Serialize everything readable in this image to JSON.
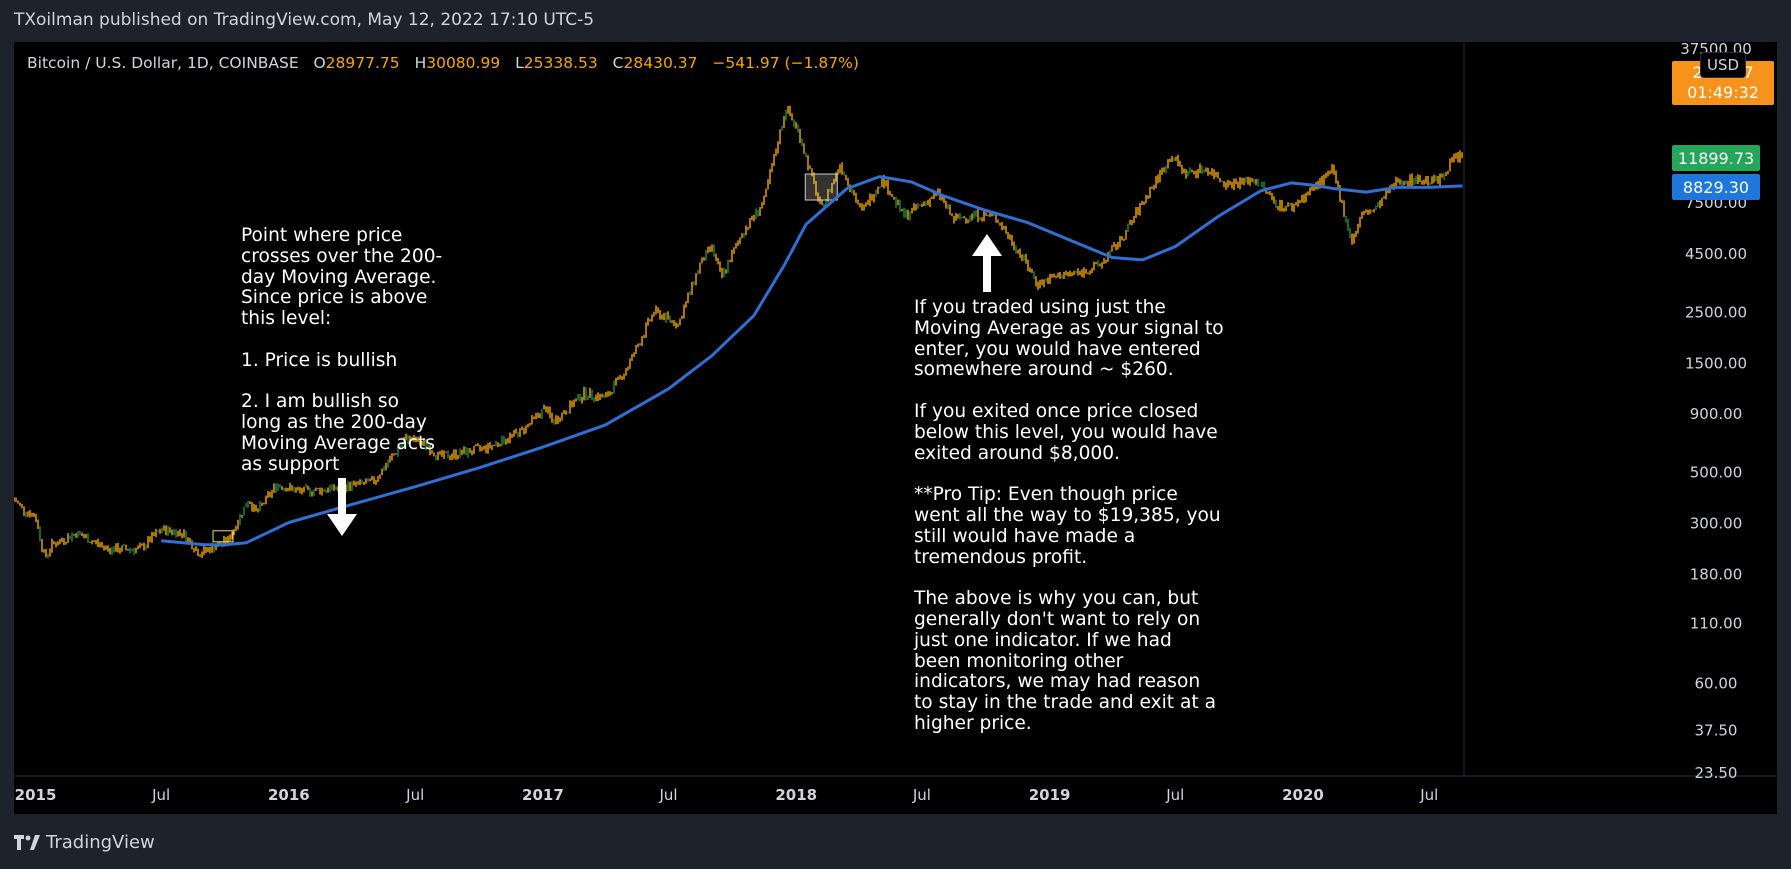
{
  "header": {
    "publisher": "TXoilman published on TradingView.com, May 12, 2022 17:10 UTC-5"
  },
  "legend": {
    "symbol": "Bitcoin / U.S. Dollar, 1D, COINBASE",
    "open_label": "O",
    "open": "28977.75",
    "high_label": "H",
    "high": "30080.99",
    "low_label": "L",
    "low": "25338.53",
    "close_label": "C",
    "close": "28430.37",
    "change": "−541.97 (−1.87%)"
  },
  "currency_badge": "USD",
  "price_tags": {
    "last_price_partial": "28    37",
    "countdown": "01:49:32",
    "current": "11899.73",
    "moving_average": "8829.30"
  },
  "annotations": {
    "left_note": "Point where price\ncrosses over the 200-\nday Moving Average.\nSince price is above\nthis level:\n\n1. Price is bullish\n\n2. I am bullish so\nlong as the 200-day\nMoving Average acts\nas support",
    "right_note": "If you traded using just the\nMoving Average as your signal to\nenter, you would have entered\nsomewhere around ~ $260.\n\nIf you exited once price closed\nbelow this level, you would have\nexited around $8,000.\n\n**Pro Tip: Even though price\nwent all the way to $19,385, you\nstill would have made a\ntremendous profit.\n\nThe above is why you can, but\ngenerally don't want to rely on\njust one indicator. If we had\nbeen monitoring other\nindicators, we may had reason\nto stay in the trade and exit at a\nhigher price."
  },
  "footer": {
    "brand": "TradingView"
  },
  "colors": {
    "candles": "#f7a600",
    "moving_average": "#2962ff",
    "ma_line": "#2f6fd6",
    "green_tag": "#26a65b",
    "orange_tag": "#f7931a"
  },
  "chart_data": {
    "type": "line",
    "y_scale": "log",
    "ylim": [
      23.5,
      37500
    ],
    "y_ticks": [
      "37500.00",
      "7500.00",
      "4500.00",
      "2500.00",
      "1500.00",
      "900.00",
      "500.00",
      "300.00",
      "180.00",
      "110.00",
      "60.00",
      "37.50",
      "23.50"
    ],
    "y_tick_values": [
      37500,
      7500,
      4500,
      2500,
      1500,
      900,
      500,
      300,
      180,
      110,
      60,
      37.5,
      23.5
    ],
    "x_ticks": [
      "2015",
      "Jul",
      "2016",
      "Jul",
      "2017",
      "Jul",
      "2018",
      "Jul",
      "2019",
      "Jul",
      "2020",
      "Jul"
    ],
    "x_tick_dates": [
      "2015-01-01",
      "2015-07-01",
      "2016-01-01",
      "2016-07-01",
      "2017-01-01",
      "2017-07-01",
      "2018-01-01",
      "2018-07-01",
      "2019-01-01",
      "2019-07-01",
      "2020-01-01",
      "2020-07-01"
    ],
    "xlim": [
      "2014-12-01",
      "2020-08-20"
    ],
    "series": [
      {
        "kind": "price",
        "x": [
          "2014-12-01",
          "2014-12-15",
          "2015-01-01",
          "2015-01-14",
          "2015-01-25",
          "2015-03-01",
          "2015-04-15",
          "2015-06-01",
          "2015-07-01",
          "2015-08-01",
          "2015-08-25",
          "2015-09-15",
          "2015-10-05",
          "2015-11-04",
          "2015-11-15",
          "2015-12-15",
          "2016-01-15",
          "2016-03-01",
          "2016-05-01",
          "2016-06-18",
          "2016-07-15",
          "2016-08-05",
          "2016-09-01",
          "2016-10-15",
          "2016-12-01",
          "2017-01-05",
          "2017-01-15",
          "2017-03-01",
          "2017-04-01",
          "2017-05-01",
          "2017-06-10",
          "2017-07-15",
          "2017-08-15",
          "2017-09-01",
          "2017-09-15",
          "2017-10-15",
          "2017-11-15",
          "2017-12-17",
          "2018-01-05",
          "2018-02-06",
          "2018-03-05",
          "2018-04-05",
          "2018-05-05",
          "2018-06-05",
          "2018-07-25",
          "2018-08-15",
          "2018-09-15",
          "2018-10-15",
          "2018-11-25",
          "2018-12-15",
          "2019-01-15",
          "2019-02-15",
          "2019-03-15",
          "2019-04-15",
          "2019-05-15",
          "2019-06-26",
          "2019-07-15",
          "2019-08-15",
          "2019-09-15",
          "2019-10-25",
          "2019-11-25",
          "2019-12-15",
          "2020-01-15",
          "2020-02-13",
          "2020-03-12",
          "2020-03-25",
          "2020-04-15",
          "2020-05-15",
          "2020-06-15",
          "2020-07-15",
          "2020-08-05",
          "2020-08-18"
        ],
        "y": [
          380,
          340,
          320,
          210,
          240,
          270,
          230,
          230,
          280,
          270,
          220,
          235,
          250,
          380,
          330,
          440,
          410,
          420,
          450,
          700,
          660,
          580,
          600,
          640,
          750,
          950,
          820,
          1100,
          1050,
          1400,
          2500,
          2200,
          4000,
          4800,
          3500,
          5500,
          7500,
          19385,
          15000,
          6900,
          11000,
          6800,
          9500,
          6500,
          8200,
          6300,
          6600,
          6500,
          4200,
          3300,
          3600,
          3700,
          4000,
          5200,
          7500,
          12000,
          10000,
          10500,
          9000,
          9400,
          7300,
          7100,
          8600,
          10300,
          5000,
          6600,
          7000,
          9300,
          9400,
          9300,
          11700,
          11899
        ]
      },
      {
        "kind": "moving_average_200",
        "x": [
          "2015-07-01",
          "2015-08-01",
          "2015-09-01",
          "2015-10-01",
          "2015-11-01",
          "2016-01-01",
          "2016-04-01",
          "2016-07-01",
          "2016-10-01",
          "2017-01-01",
          "2017-04-01",
          "2017-07-01",
          "2017-09-01",
          "2017-11-01",
          "2017-12-15",
          "2018-01-15",
          "2018-03-15",
          "2018-05-01",
          "2018-06-15",
          "2018-08-01",
          "2018-10-01",
          "2018-12-01",
          "2019-02-01",
          "2019-04-01",
          "2019-05-15",
          "2019-07-01",
          "2019-09-01",
          "2019-11-01",
          "2019-12-15",
          "2020-01-15",
          "2020-02-15",
          "2020-04-01",
          "2020-05-15",
          "2020-06-30",
          "2020-08-18"
        ],
        "y": [
          250,
          245,
          240,
          240,
          245,
          300,
          360,
          430,
          520,
          640,
          800,
          1150,
          1600,
          2400,
          4000,
          6000,
          8600,
          9700,
          9200,
          8000,
          6900,
          6100,
          5100,
          4300,
          4200,
          4800,
          6500,
          8400,
          9100,
          8900,
          8600,
          8300,
          8700,
          8700,
          8829
        ]
      }
    ]
  }
}
